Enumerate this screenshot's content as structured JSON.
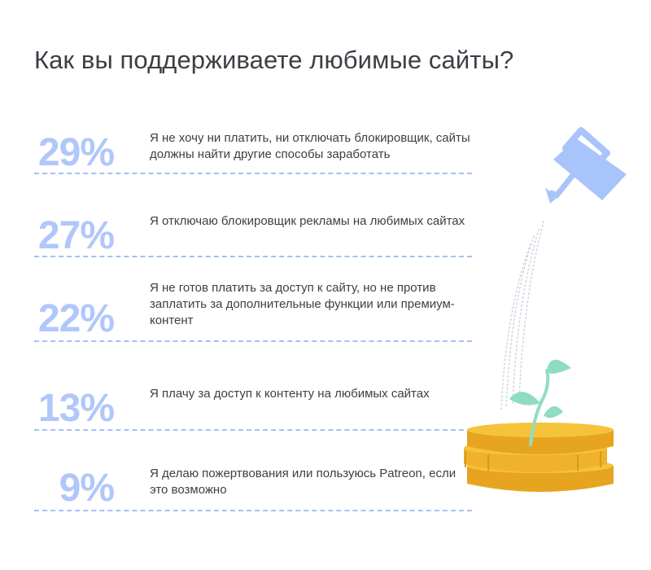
{
  "title": "Как вы поддерживаете любимые сайты?",
  "chart_data": {
    "type": "table",
    "title": "Как вы поддерживаете любимые сайты?",
    "unit": "%",
    "rows": [
      {
        "value": 29,
        "label": "29%",
        "text": "Я не хочу ни платить, ни отключать блокировщик, сайты должны найти другие способы заработать"
      },
      {
        "value": 27,
        "label": "27%",
        "text": "Я отключаю блокировщик рекламы на любимых сайтах"
      },
      {
        "value": 22,
        "label": "22%",
        "text": "Я не готов платить за доступ к сайту, но не против заплатить за дополнительные функции или премиум-контент"
      },
      {
        "value": 13,
        "label": "13%",
        "text": "Я плачу за доступ к контенту на любимых сайтах"
      },
      {
        "value": 9,
        "label": "9%",
        "text": "Я делаю пожертвования или пользуюсь Patreon, если это возможно"
      }
    ]
  },
  "colors": {
    "percent": "#b0c7fb",
    "separator": "#a5bffa",
    "text": "#3b3f45",
    "watering_can": "#a9c3fb",
    "leaf": "#8fdcc4",
    "coin": "#f5c33a",
    "coin_dark": "#e6a41f"
  },
  "illustration": {
    "icons": [
      "watering-can-icon",
      "water-drops-icon",
      "sprout-icon",
      "coin-stack-icon"
    ]
  }
}
